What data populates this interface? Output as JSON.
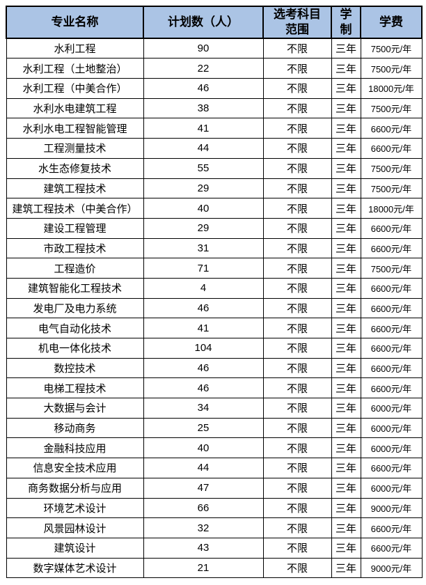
{
  "table": {
    "header_bg": "#abc4e5",
    "border_color": "#000000",
    "columns": [
      {
        "id": "major",
        "label": "专业名称"
      },
      {
        "id": "plan",
        "label": "计划数（人）"
      },
      {
        "id": "subjects",
        "label": "选考科目\n范围"
      },
      {
        "id": "duration",
        "label": "学\n制"
      },
      {
        "id": "tuition",
        "label": "学费"
      }
    ],
    "rows": [
      [
        "水利工程",
        "90",
        "不限",
        "三年",
        "7500元/年"
      ],
      [
        "水利工程（土地整治）",
        "22",
        "不限",
        "三年",
        "7500元/年"
      ],
      [
        "水利工程（中美合作）",
        "46",
        "不限",
        "三年",
        "18000元/年"
      ],
      [
        "水利水电建筑工程",
        "38",
        "不限",
        "三年",
        "7500元/年"
      ],
      [
        "水利水电工程智能管理",
        "41",
        "不限",
        "三年",
        "6600元/年"
      ],
      [
        "工程测量技术",
        "44",
        "不限",
        "三年",
        "6600元/年"
      ],
      [
        "水生态修复技术",
        "55",
        "不限",
        "三年",
        "7500元/年"
      ],
      [
        "建筑工程技术",
        "29",
        "不限",
        "三年",
        "7500元/年"
      ],
      [
        "建筑工程技术（中美合作）",
        "40",
        "不限",
        "三年",
        "18000元/年"
      ],
      [
        "建设工程管理",
        "29",
        "不限",
        "三年",
        "6600元/年"
      ],
      [
        "市政工程技术",
        "31",
        "不限",
        "三年",
        "6600元/年"
      ],
      [
        "工程造价",
        "71",
        "不限",
        "三年",
        "7500元/年"
      ],
      [
        "建筑智能化工程技术",
        "4",
        "不限",
        "三年",
        "6600元/年"
      ],
      [
        "发电厂及电力系统",
        "46",
        "不限",
        "三年",
        "6600元/年"
      ],
      [
        "电气自动化技术",
        "41",
        "不限",
        "三年",
        "6600元/年"
      ],
      [
        "机电一体化技术",
        "104",
        "不限",
        "三年",
        "6600元/年"
      ],
      [
        "数控技术",
        "46",
        "不限",
        "三年",
        "6600元/年"
      ],
      [
        "电梯工程技术",
        "46",
        "不限",
        "三年",
        "6600元/年"
      ],
      [
        "大数据与会计",
        "34",
        "不限",
        "三年",
        "6000元/年"
      ],
      [
        "移动商务",
        "25",
        "不限",
        "三年",
        "6000元/年"
      ],
      [
        "金融科技应用",
        "40",
        "不限",
        "三年",
        "6000元/年"
      ],
      [
        "信息安全技术应用",
        "44",
        "不限",
        "三年",
        "6600元/年"
      ],
      [
        "商务数据分析与应用",
        "47",
        "不限",
        "三年",
        "6000元/年"
      ],
      [
        "环境艺术设计",
        "66",
        "不限",
        "三年",
        "9000元/年"
      ],
      [
        "风景园林设计",
        "32",
        "不限",
        "三年",
        "6600元/年"
      ],
      [
        "建筑设计",
        "43",
        "不限",
        "三年",
        "6600元/年"
      ],
      [
        "数字媒体艺术设计",
        "21",
        "不限",
        "三年",
        "9000元/年"
      ]
    ]
  }
}
